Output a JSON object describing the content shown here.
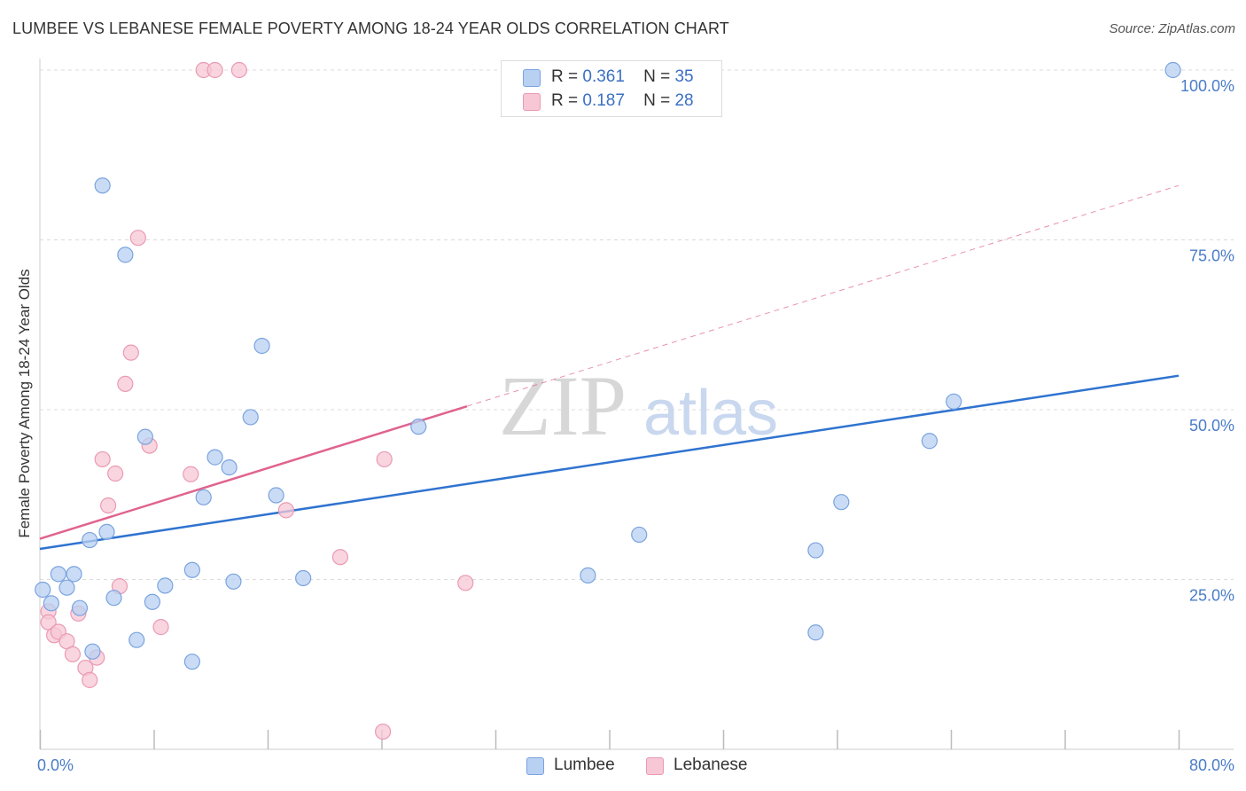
{
  "title": "LUMBEE VS LEBANESE FEMALE POVERTY AMONG 18-24 YEAR OLDS CORRELATION CHART",
  "source": "Source: ZipAtlas.com",
  "watermark": {
    "zip": "ZIP",
    "atlas": "atlas"
  },
  "legend": {
    "r_label": "R =",
    "n_label": "N =",
    "rows": [
      {
        "r": "0.361",
        "n": "35"
      },
      {
        "r": "0.187",
        "n": "28"
      }
    ]
  },
  "colors": {
    "lumbee_fill": "#b8d0f2",
    "lumbee_stroke": "#7aa3df",
    "lumbee_line": "#2f73d0",
    "lebanese_fill": "#f7c7d5",
    "lebanese_stroke": "#ea9ab3",
    "lebanese_line": "#e0638f",
    "tick_text": "#4a7cc8"
  },
  "chart_data": {
    "type": "scatter",
    "title": "LUMBEE VS LEBANESE FEMALE POVERTY AMONG 18-24 YEAR OLDS CORRELATION CHART",
    "xlabel": "",
    "ylabel": "Female Poverty Among 18-24 Year Olds",
    "xlim": [
      0,
      80
    ],
    "ylim": [
      0,
      100
    ],
    "x_tick_labels": [
      {
        "value": 0,
        "label": "0.0%"
      },
      {
        "value": 80,
        "label": "80.0%"
      }
    ],
    "y_tick_labels": [
      {
        "value": 25,
        "label": "25.0%"
      },
      {
        "value": 50,
        "label": "50.0%"
      },
      {
        "value": 75,
        "label": "75.0%"
      },
      {
        "value": 100,
        "label": "100.0%"
      }
    ],
    "grid": true,
    "legend_position": "top-center",
    "series": [
      {
        "name": "Lumbee",
        "r": 0.361,
        "n": 35,
        "trend": {
          "x": [
            0,
            80
          ],
          "y": [
            29.5,
            55.0
          ],
          "solid_to": 80
        },
        "points": [
          [
            0.2,
            23.5
          ],
          [
            0.8,
            21.5
          ],
          [
            1.3,
            25.8
          ],
          [
            1.9,
            23.8
          ],
          [
            2.4,
            25.8
          ],
          [
            2.8,
            20.8
          ],
          [
            3.5,
            30.8
          ],
          [
            3.7,
            14.4
          ],
          [
            4.4,
            83.0
          ],
          [
            4.7,
            32.0
          ],
          [
            5.2,
            22.3
          ],
          [
            6.0,
            72.8
          ],
          [
            6.8,
            16.1
          ],
          [
            7.4,
            46.0
          ],
          [
            7.9,
            21.7
          ],
          [
            8.8,
            24.1
          ],
          [
            10.7,
            26.4
          ],
          [
            10.7,
            12.9
          ],
          [
            11.5,
            37.1
          ],
          [
            12.3,
            43.0
          ],
          [
            13.3,
            41.5
          ],
          [
            13.6,
            24.7
          ],
          [
            14.8,
            48.9
          ],
          [
            15.6,
            59.4
          ],
          [
            16.6,
            37.4
          ],
          [
            18.5,
            25.2
          ],
          [
            26.6,
            47.5
          ],
          [
            38.5,
            25.6
          ],
          [
            42.1,
            31.6
          ],
          [
            54.5,
            17.2
          ],
          [
            54.5,
            29.3
          ],
          [
            56.3,
            36.4
          ],
          [
            62.5,
            45.4
          ],
          [
            64.2,
            51.2
          ],
          [
            79.6,
            100.0
          ]
        ]
      },
      {
        "name": "Lebanese",
        "r": 0.187,
        "n": 28,
        "trend": {
          "x": [
            0,
            80
          ],
          "y": [
            31.0,
            83.0
          ],
          "solid_to": 30
        },
        "points": [
          [
            0.6,
            20.3
          ],
          [
            0.6,
            18.7
          ],
          [
            1.0,
            16.8
          ],
          [
            1.3,
            17.3
          ],
          [
            1.9,
            15.9
          ],
          [
            2.3,
            14.0
          ],
          [
            2.7,
            20.0
          ],
          [
            3.2,
            12.0
          ],
          [
            3.5,
            10.2
          ],
          [
            4.0,
            13.5
          ],
          [
            4.4,
            42.7
          ],
          [
            4.8,
            35.9
          ],
          [
            5.3,
            40.6
          ],
          [
            5.6,
            24.0
          ],
          [
            6.0,
            53.8
          ],
          [
            6.4,
            58.4
          ],
          [
            6.9,
            75.3
          ],
          [
            7.7,
            44.7
          ],
          [
            8.5,
            18.0
          ],
          [
            10.6,
            40.5
          ],
          [
            11.5,
            100.0
          ],
          [
            12.3,
            100.0
          ],
          [
            14.0,
            100.0
          ],
          [
            17.3,
            35.2
          ],
          [
            21.1,
            28.3
          ],
          [
            24.1,
            2.6
          ],
          [
            24.2,
            42.7
          ],
          [
            29.9,
            24.5
          ]
        ]
      }
    ]
  }
}
